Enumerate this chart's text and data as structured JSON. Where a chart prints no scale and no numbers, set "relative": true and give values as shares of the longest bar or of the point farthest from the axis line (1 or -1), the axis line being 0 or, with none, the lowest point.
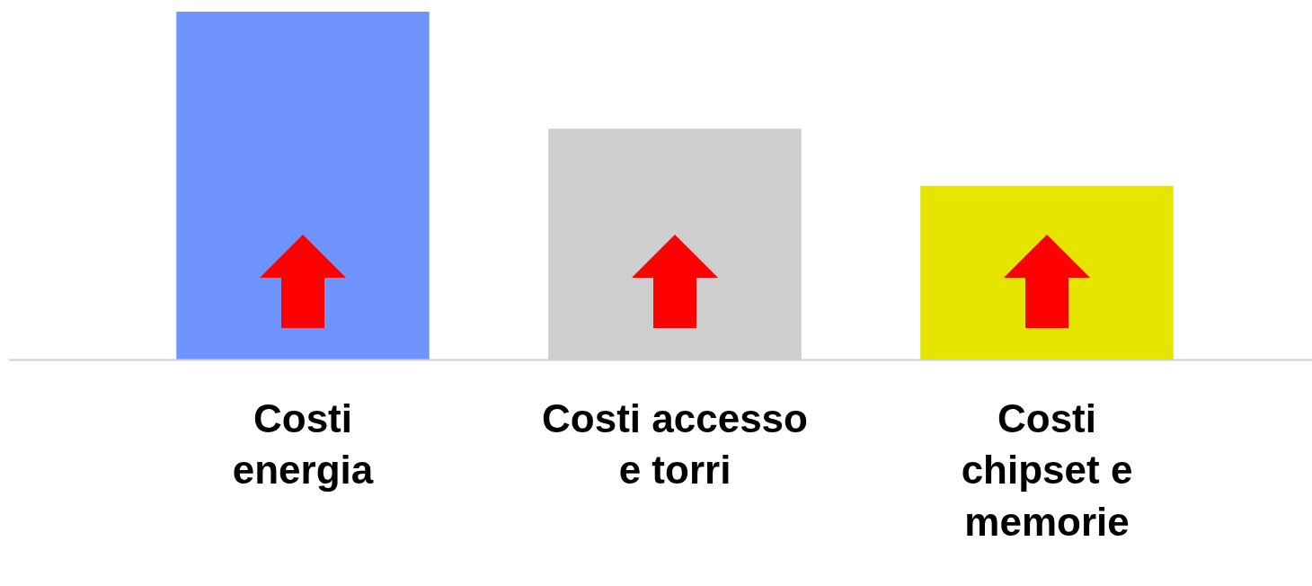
{
  "chart_data": {
    "type": "bar",
    "relative": true,
    "categories": [
      "Costi\nenergia",
      "Costi accesso\ne torri",
      "Costi\nchipset e\nmemorie"
    ],
    "values": [
      1,
      0.664,
      0.5
    ],
    "colors": [
      "#7094ff",
      "#cecece",
      "#e5e500"
    ],
    "grid": false,
    "legend": false
  }
}
